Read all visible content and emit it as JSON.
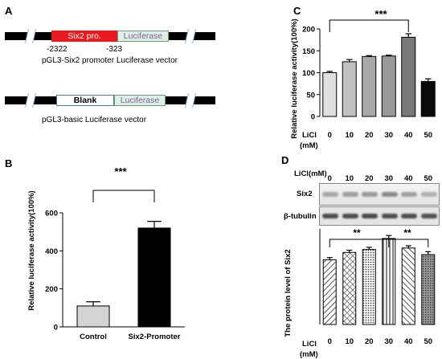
{
  "panels": {
    "A": {
      "label": "A",
      "vector1": {
        "insert": "Six2 pro.",
        "reporter": "Luciferase",
        "pos_start": "-2322",
        "pos_end": "-323",
        "caption": "pGL3-Six2 promoter Luciferase vector"
      },
      "vector2": {
        "insert": "Blank",
        "reporter": "Luciferase",
        "caption": "pGL3-basic Luciferase vector"
      }
    },
    "B": {
      "label": "B",
      "significance": "***"
    },
    "C": {
      "label": "C",
      "significance": "***",
      "xlabel_line1": "LiCl",
      "xlabel_line2": "(mM)"
    },
    "D": {
      "label": "D",
      "header": "LiCl(mM)",
      "blot_rows": [
        "Six2",
        "β-tubulin"
      ],
      "sig_left": "**",
      "sig_right": "**",
      "xlabel_line1": "LiCl",
      "xlabel_line2": "(mM)"
    }
  },
  "colors": {
    "promoter_red": "#e8191f",
    "luciferase_fill": "#dff0e3",
    "luciferase_text": "#7a5ca8",
    "bar_black": "#000000",
    "bar_lightgray": "#d4d4d4"
  },
  "chart_data": [
    {
      "id": "B",
      "type": "bar",
      "categories": [
        "Control",
        "Six2-Promoter"
      ],
      "values": [
        110,
        520
      ],
      "errors": [
        22,
        35
      ],
      "ylabel": "Relative luciferase activity(100%)",
      "ylim": [
        0,
        600
      ],
      "yticks": [
        0,
        200,
        400,
        600
      ],
      "bar_colors": [
        "#d4d4d4",
        "#000000"
      ]
    },
    {
      "id": "C",
      "type": "bar",
      "categories": [
        "0",
        "10",
        "20",
        "30",
        "40",
        "50"
      ],
      "values": [
        100,
        125,
        137,
        138,
        181,
        80
      ],
      "errors": [
        3,
        5,
        2,
        2,
        8,
        6
      ],
      "ylabel": "Relative luciferase activity(100%)",
      "ylim": [
        0,
        200
      ],
      "yticks": [
        0,
        50,
        100,
        150,
        200
      ],
      "bar_colors": [
        "#e0e0e0",
        "#c0c0c0",
        "#a8a8a8",
        "#9a9a9a",
        "#787878",
        "#0a0a0a"
      ]
    },
    {
      "id": "D",
      "type": "bar",
      "categories": [
        "0",
        "10",
        "20",
        "30",
        "40",
        "50"
      ],
      "values": [
        88,
        98,
        102,
        117,
        104,
        95
      ],
      "errors": [
        3,
        3,
        3,
        4,
        3,
        4
      ],
      "ylabel": "The protein level of Six2",
      "ylim": [
        0,
        130
      ],
      "patterns": [
        "diag-up",
        "cross",
        "dots",
        "vlines",
        "diag-down",
        "dense"
      ]
    }
  ]
}
